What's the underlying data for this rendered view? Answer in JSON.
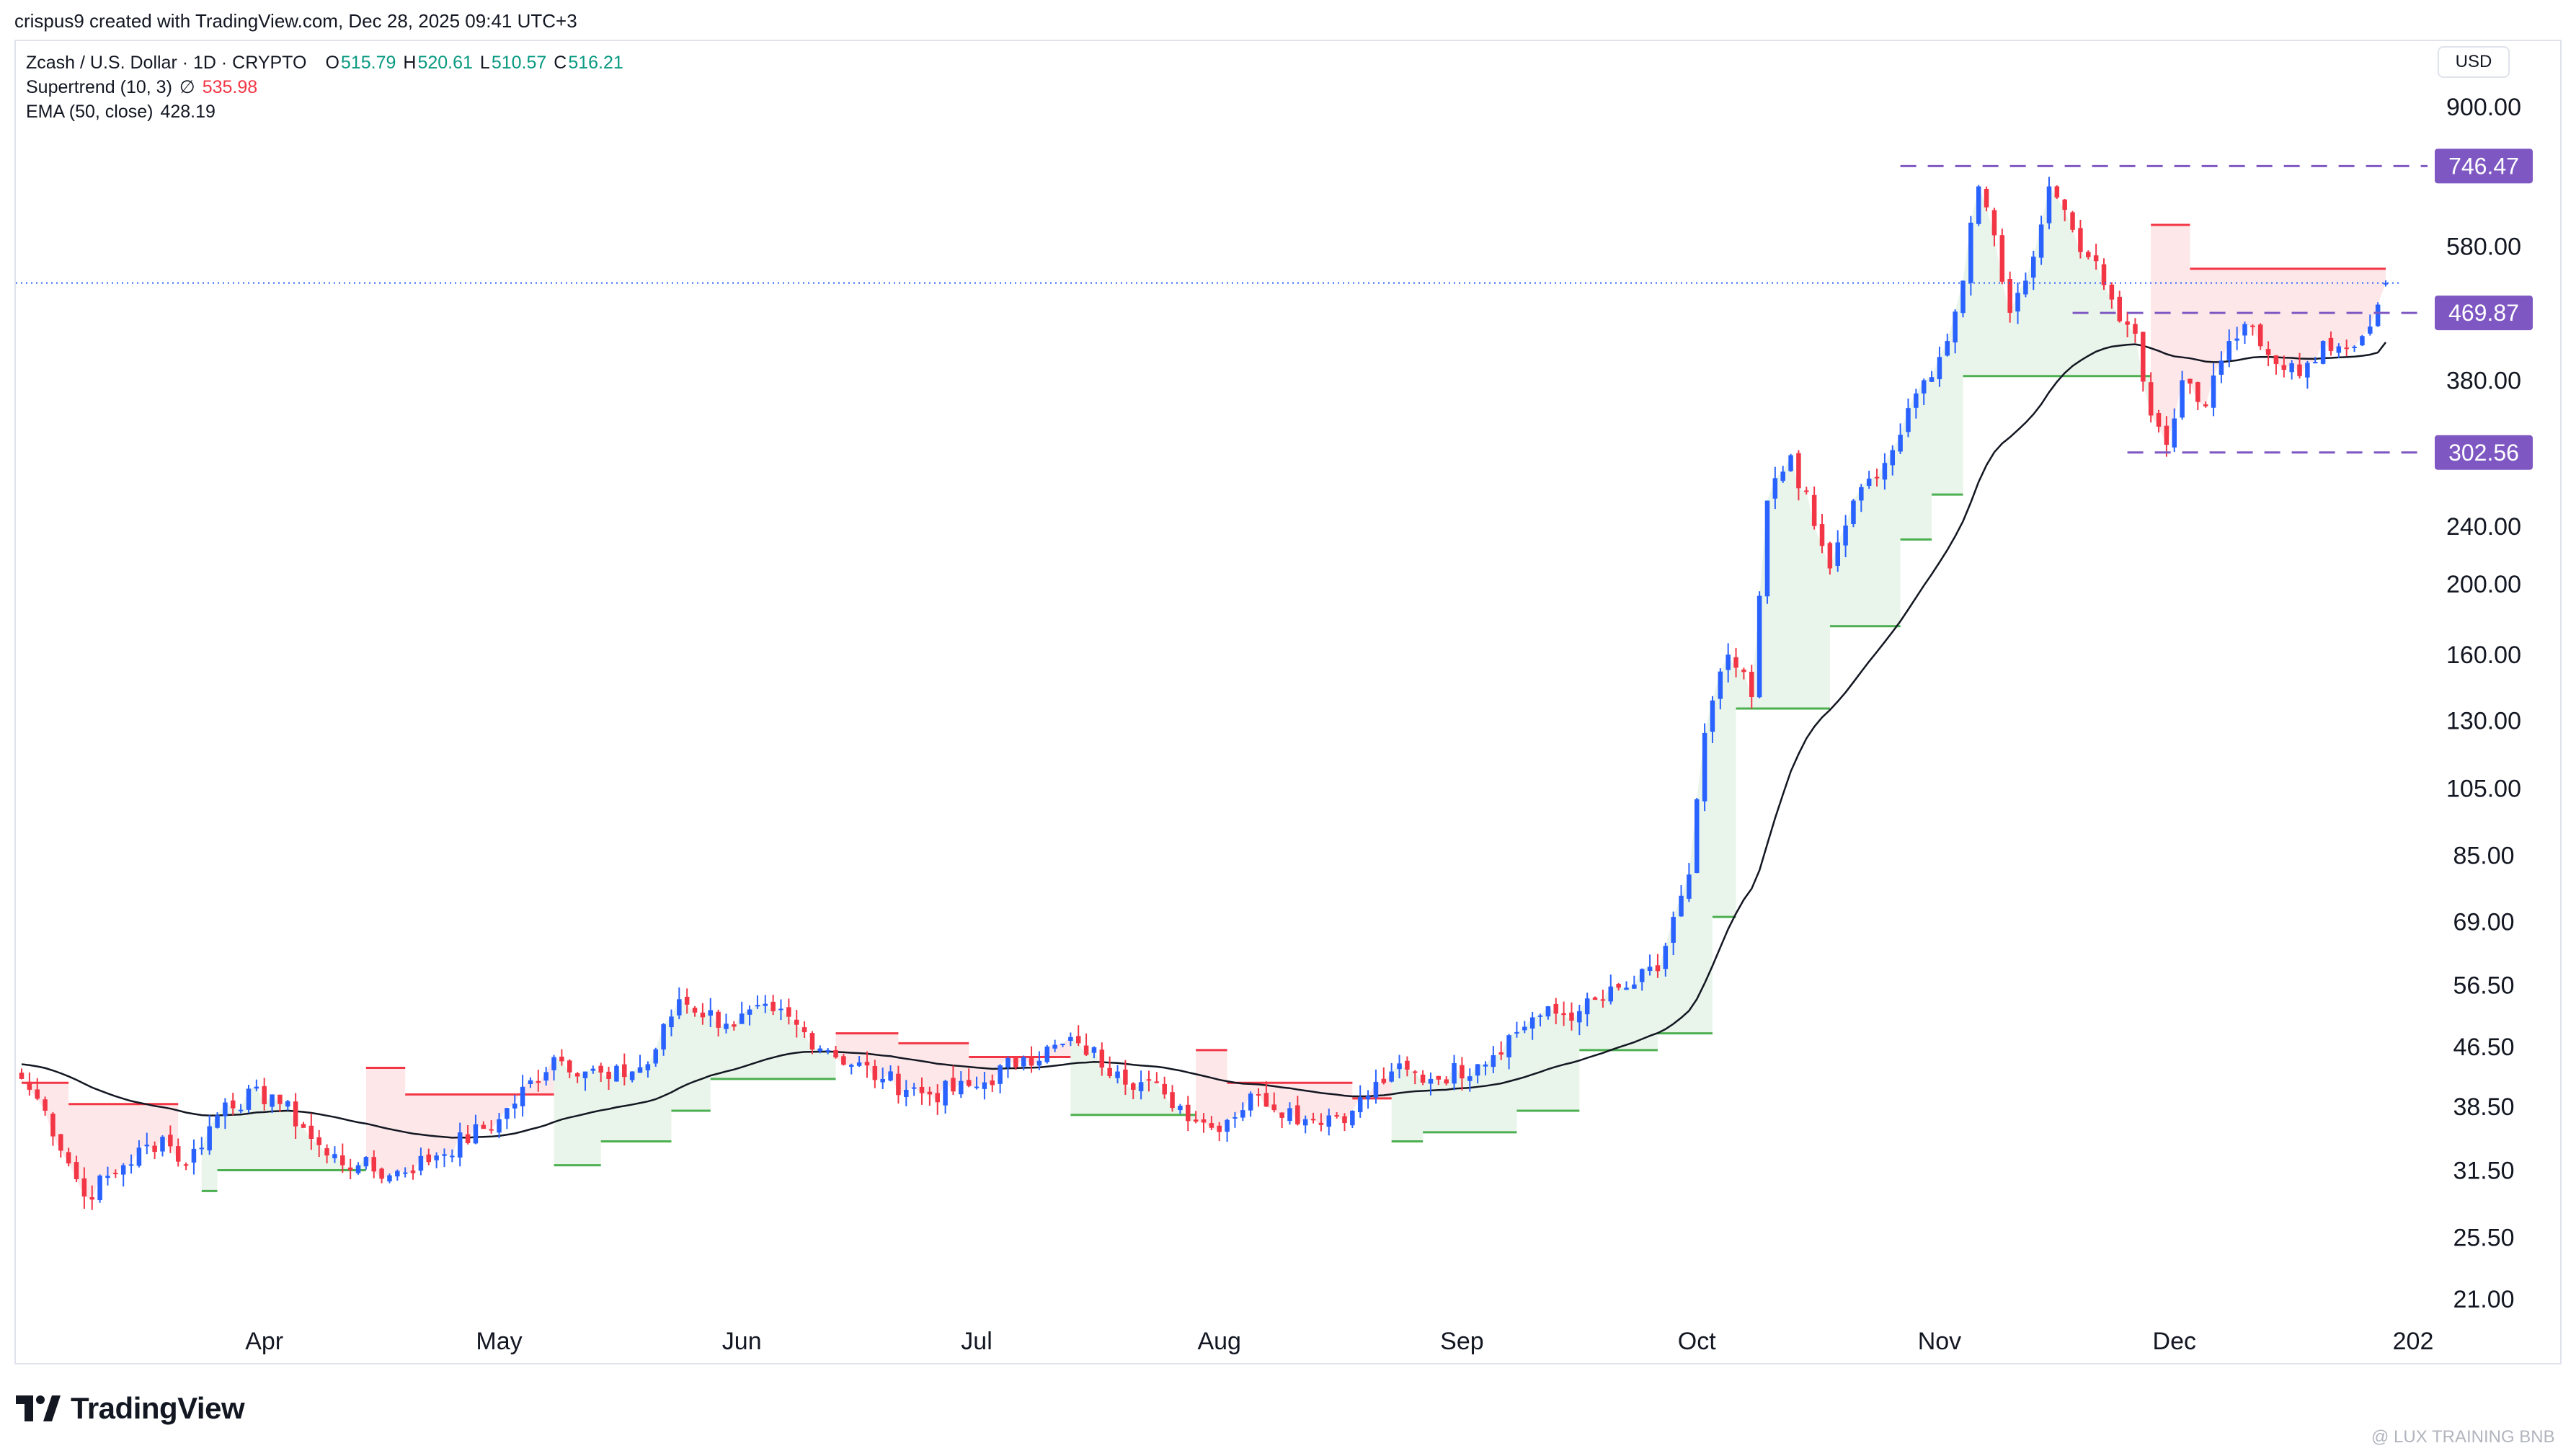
{
  "attribution": "crispus9 created with TradingView.com, Dec 28, 2025 09:41 UTC+3",
  "legend": {
    "symbol": "Zcash / U.S. Dollar · 1D · CRYPTO",
    "open_label": "O",
    "open": "515.79",
    "high_label": "H",
    "high": "520.61",
    "low_label": "L",
    "low": "510.57",
    "close_label": "C",
    "close": "516.21",
    "supertrend_label": "Supertrend (10, 3)",
    "supertrend_icon": "∅",
    "supertrend_value": "535.98",
    "ema_label": "EMA (50, close)",
    "ema_value": "428.19"
  },
  "currency": "USD",
  "brand": "TradingView",
  "watermark": "@ LUX TRAINING BNB",
  "colors": {
    "up": "#2962ff",
    "down": "#f23645",
    "supertrend_up": "#4caf50",
    "supertrend_down": "#f23645",
    "ema": "#131722",
    "badge": "#7e57c2"
  },
  "chart_data": {
    "type": "candlestick",
    "scale": "log",
    "ylim": [
      18,
      1100
    ],
    "y_ticks": [
      "900.00",
      "580.00",
      "380.00",
      "240.00",
      "200.00",
      "160.00",
      "130.00",
      "105.00",
      "85.00",
      "69.00",
      "56.50",
      "46.50",
      "38.50",
      "31.50",
      "25.50",
      "21.00"
    ],
    "x_labels": [
      "Apr",
      "May",
      "Jun",
      "Jul",
      "Aug",
      "Sep",
      "Oct",
      "Nov",
      "Dec",
      "202"
    ],
    "x_label_days": [
      31,
      61,
      92,
      122,
      153,
      184,
      214,
      245,
      275,
      306
    ],
    "last_day": 302,
    "current_price": 516.21,
    "levels": [
      {
        "value": 746.47,
        "label": "746.47",
        "from_day": 240
      },
      {
        "value": 469.87,
        "label": "469.87",
        "from_day": 262
      },
      {
        "value": 302.56,
        "label": "302.56",
        "from_day": 269
      }
    ],
    "anchors": [
      {
        "day": 0,
        "price": 42
      },
      {
        "day": 3,
        "price": 38
      },
      {
        "day": 8,
        "price": 29
      },
      {
        "day": 13,
        "price": 32
      },
      {
        "day": 18,
        "price": 35
      },
      {
        "day": 21,
        "price": 32
      },
      {
        "day": 26,
        "price": 39
      },
      {
        "day": 32,
        "price": 40
      },
      {
        "day": 36,
        "price": 36
      },
      {
        "day": 39,
        "price": 33
      },
      {
        "day": 43,
        "price": 32
      },
      {
        "day": 47,
        "price": 31
      },
      {
        "day": 53,
        "price": 33
      },
      {
        "day": 61,
        "price": 37
      },
      {
        "day": 68,
        "price": 45
      },
      {
        "day": 75,
        "price": 42
      },
      {
        "day": 80,
        "price": 44
      },
      {
        "day": 84,
        "price": 54
      },
      {
        "day": 90,
        "price": 50
      },
      {
        "day": 96,
        "price": 52
      },
      {
        "day": 103,
        "price": 46
      },
      {
        "day": 110,
        "price": 42
      },
      {
        "day": 116,
        "price": 40
      },
      {
        "day": 122,
        "price": 41
      },
      {
        "day": 128,
        "price": 45
      },
      {
        "day": 135,
        "price": 47
      },
      {
        "day": 140,
        "price": 43
      },
      {
        "day": 146,
        "price": 40
      },
      {
        "day": 152,
        "price": 36
      },
      {
        "day": 158,
        "price": 40
      },
      {
        "day": 164,
        "price": 37
      },
      {
        "day": 170,
        "price": 38
      },
      {
        "day": 175,
        "price": 43
      },
      {
        "day": 180,
        "price": 42
      },
      {
        "day": 186,
        "price": 44
      },
      {
        "day": 193,
        "price": 51
      },
      {
        "day": 199,
        "price": 52
      },
      {
        "day": 205,
        "price": 56
      },
      {
        "day": 209,
        "price": 59
      },
      {
        "day": 211,
        "price": 70
      },
      {
        "day": 213,
        "price": 80
      },
      {
        "day": 215,
        "price": 125
      },
      {
        "day": 218,
        "price": 160
      },
      {
        "day": 221,
        "price": 140
      },
      {
        "day": 223,
        "price": 260
      },
      {
        "day": 226,
        "price": 300
      },
      {
        "day": 229,
        "price": 240
      },
      {
        "day": 231,
        "price": 210
      },
      {
        "day": 234,
        "price": 260
      },
      {
        "day": 237,
        "price": 280
      },
      {
        "day": 240,
        "price": 320
      },
      {
        "day": 243,
        "price": 380
      },
      {
        "day": 246,
        "price": 430
      },
      {
        "day": 248,
        "price": 520
      },
      {
        "day": 250,
        "price": 700
      },
      {
        "day": 252,
        "price": 600
      },
      {
        "day": 254,
        "price": 470
      },
      {
        "day": 256,
        "price": 520
      },
      {
        "day": 259,
        "price": 700
      },
      {
        "day": 261,
        "price": 650
      },
      {
        "day": 264,
        "price": 560
      },
      {
        "day": 267,
        "price": 490
      },
      {
        "day": 270,
        "price": 440
      },
      {
        "day": 272,
        "price": 340
      },
      {
        "day": 274,
        "price": 310
      },
      {
        "day": 276,
        "price": 380
      },
      {
        "day": 279,
        "price": 350
      },
      {
        "day": 282,
        "price": 430
      },
      {
        "day": 285,
        "price": 450
      },
      {
        "day": 288,
        "price": 400
      },
      {
        "day": 291,
        "price": 385
      },
      {
        "day": 294,
        "price": 430
      },
      {
        "day": 297,
        "price": 420
      },
      {
        "day": 300,
        "price": 450
      },
      {
        "day": 302,
        "price": 516.21
      }
    ],
    "supertrend": [
      {
        "from": 0,
        "to": 6,
        "value": 41.5,
        "dir": "down"
      },
      {
        "from": 6,
        "to": 20,
        "value": 38.8,
        "dir": "down"
      },
      {
        "from": 23,
        "to": 25,
        "value": 29.5,
        "dir": "up"
      },
      {
        "from": 25,
        "to": 44,
        "value": 31.5,
        "dir": "up"
      },
      {
        "from": 44,
        "to": 49,
        "value": 43.5,
        "dir": "down"
      },
      {
        "from": 49,
        "to": 68,
        "value": 40,
        "dir": "down"
      },
      {
        "from": 68,
        "to": 74,
        "value": 32,
        "dir": "up"
      },
      {
        "from": 74,
        "to": 83,
        "value": 34.5,
        "dir": "up"
      },
      {
        "from": 83,
        "to": 88,
        "value": 38,
        "dir": "up"
      },
      {
        "from": 88,
        "to": 104,
        "value": 42,
        "dir": "up"
      },
      {
        "from": 104,
        "to": 112,
        "value": 48.5,
        "dir": "down"
      },
      {
        "from": 112,
        "to": 121,
        "value": 47,
        "dir": "down"
      },
      {
        "from": 121,
        "to": 134,
        "value": 45,
        "dir": "down"
      },
      {
        "from": 134,
        "to": 150,
        "value": 37.5,
        "dir": "up"
      },
      {
        "from": 150,
        "to": 154,
        "value": 46,
        "dir": "down"
      },
      {
        "from": 154,
        "to": 170,
        "value": 41.5,
        "dir": "down"
      },
      {
        "from": 170,
        "to": 175,
        "value": 39.5,
        "dir": "down"
      },
      {
        "from": 175,
        "to": 179,
        "value": 34.5,
        "dir": "up"
      },
      {
        "from": 179,
        "to": 191,
        "value": 35.5,
        "dir": "up"
      },
      {
        "from": 191,
        "to": 199,
        "value": 38,
        "dir": "up"
      },
      {
        "from": 199,
        "to": 209,
        "value": 46,
        "dir": "up"
      },
      {
        "from": 209,
        "to": 216,
        "value": 48.5,
        "dir": "up"
      },
      {
        "from": 216,
        "to": 219,
        "value": 70,
        "dir": "up"
      },
      {
        "from": 219,
        "to": 231,
        "value": 135,
        "dir": "up"
      },
      {
        "from": 231,
        "to": 240,
        "value": 175,
        "dir": "up"
      },
      {
        "from": 240,
        "to": 244,
        "value": 230,
        "dir": "up"
      },
      {
        "from": 244,
        "to": 248,
        "value": 265,
        "dir": "up"
      },
      {
        "from": 248,
        "to": 272,
        "value": 385,
        "dir": "up"
      },
      {
        "from": 272,
        "to": 277,
        "value": 620,
        "dir": "down"
      },
      {
        "from": 277,
        "to": 302,
        "value": 540,
        "dir": "down"
      }
    ]
  }
}
